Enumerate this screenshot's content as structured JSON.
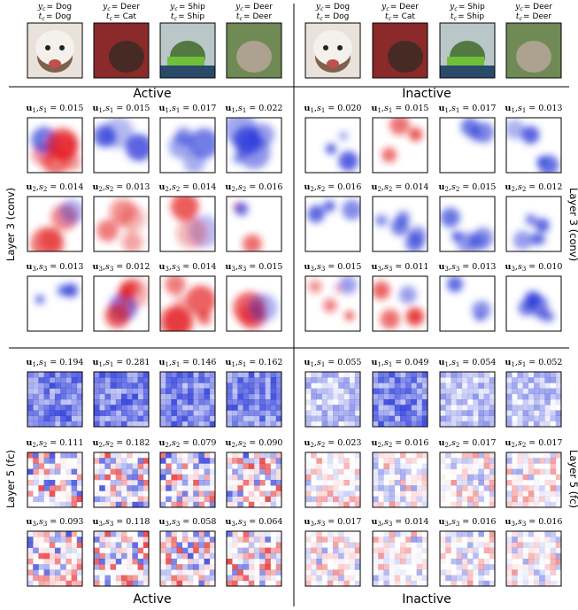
{
  "sides": [
    {
      "title": "Active",
      "images": [
        {
          "yc": [
            "y",
            "c",
            "= Dog"
          ],
          "tc": [
            "t",
            "c",
            "= Dog"
          ]
        },
        {
          "yc": [
            "y",
            "c",
            "= Deer"
          ],
          "tc": [
            "t",
            "c",
            "= Cat"
          ]
        },
        {
          "yc": [
            "y",
            "c",
            "= Ship"
          ],
          "tc": [
            "t",
            "c",
            "= Ship"
          ]
        },
        {
          "yc": [
            "y",
            "c",
            "= Deer"
          ],
          "tc": [
            "t",
            "c",
            "= Deer"
          ]
        }
      ]
    },
    {
      "title": "Inactive",
      "images": [
        {
          "yc": [
            "y",
            "c",
            "= Dog"
          ],
          "tc": [
            "t",
            "c",
            "= Dog"
          ]
        },
        {
          "yc": [
            "y",
            "c",
            "= Deer"
          ],
          "tc": [
            "t",
            "c",
            "= Cat"
          ]
        },
        {
          "yc": [
            "y",
            "c",
            "= Ship"
          ],
          "tc": [
            "t",
            "c",
            "= Ship"
          ]
        },
        {
          "yc": [
            "y",
            "c",
            "= Deer"
          ],
          "tc": [
            "t",
            "c",
            "= Deer"
          ]
        }
      ]
    }
  ],
  "layers": [
    {
      "label": "Layer 3 (conv)",
      "rows": [
        {
          "caption": [
            "u",
            "1",
            ",",
            "s",
            "1",
            "="
          ],
          "active": [
            "0.015",
            "0.015",
            "0.017",
            "0.022"
          ],
          "inactive": [
            "0.020",
            "0.015",
            "0.017",
            "0.013"
          ]
        },
        {
          "caption": [
            "u",
            "2",
            ",",
            "s",
            "2",
            "="
          ],
          "active": [
            "0.014",
            "0.013",
            "0.014",
            "0.016"
          ],
          "inactive": [
            "0.016",
            "0.014",
            "0.015",
            "0.012"
          ]
        },
        {
          "caption": [
            "u",
            "3",
            ",",
            "s",
            "3",
            "="
          ],
          "active": [
            "0.013",
            "0.012",
            "0.014",
            "0.015"
          ],
          "inactive": [
            "0.015",
            "0.011",
            "0.013",
            "0.010"
          ]
        }
      ]
    },
    {
      "label": "Layer 5 (fc)",
      "rows": [
        {
          "caption": [
            "u",
            "1",
            ",",
            "s",
            "1",
            "="
          ],
          "active": [
            "0.194",
            "0.281",
            "0.146",
            "0.162"
          ],
          "inactive": [
            "0.055",
            "0.049",
            "0.054",
            "0.052"
          ]
        },
        {
          "caption": [
            "u",
            "2",
            ",",
            "s",
            "2",
            "="
          ],
          "active": [
            "0.111",
            "0.182",
            "0.079",
            "0.090"
          ],
          "inactive": [
            "0.023",
            "0.016",
            "0.017",
            "0.017"
          ]
        },
        {
          "caption": [
            "u",
            "3",
            ",",
            "s",
            "3",
            "="
          ],
          "active": [
            "0.093",
            "0.118",
            "0.058",
            "0.064"
          ],
          "inactive": [
            "0.017",
            "0.014",
            "0.016",
            "0.016"
          ]
        }
      ]
    }
  ]
}
